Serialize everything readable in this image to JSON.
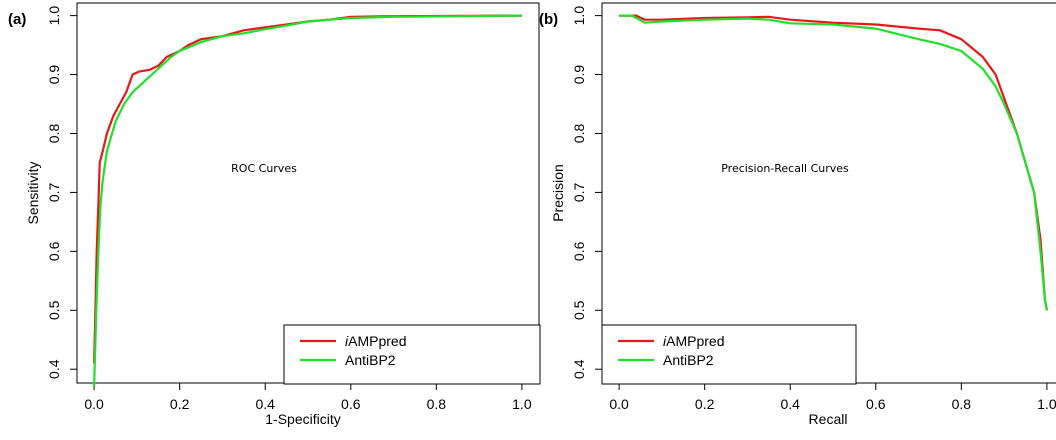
{
  "chart_data": [
    {
      "panel_label": "(a)",
      "type": "line",
      "annotation": "ROC Curves",
      "xlabel": "1-Specificity",
      "ylabel": "Sensitivity",
      "xlim": [
        0,
        1
      ],
      "ylim": [
        0.38,
        1.0
      ],
      "x_ticks": [
        "0.0",
        "0.2",
        "0.4",
        "0.6",
        "0.8",
        "1.0"
      ],
      "y_ticks": [
        "0.4",
        "0.5",
        "0.6",
        "0.7",
        "0.8",
        "0.9",
        "1.0"
      ],
      "legend_position": "bottom-right",
      "series": [
        {
          "name_prefix": "i",
          "name_rest": "AMPpred",
          "color": "#e8171c",
          "points": [
            [
              0,
              0.41
            ],
            [
              0.003,
              0.5
            ],
            [
              0.006,
              0.6
            ],
            [
              0.01,
              0.68
            ],
            [
              0.013,
              0.75
            ],
            [
              0.02,
              0.77
            ],
            [
              0.03,
              0.8
            ],
            [
              0.045,
              0.83
            ],
            [
              0.06,
              0.85
            ],
            [
              0.075,
              0.87
            ],
            [
              0.09,
              0.9
            ],
            [
              0.105,
              0.905
            ],
            [
              0.13,
              0.908
            ],
            [
              0.15,
              0.915
            ],
            [
              0.17,
              0.93
            ],
            [
              0.2,
              0.94
            ],
            [
              0.22,
              0.95
            ],
            [
              0.25,
              0.96
            ],
            [
              0.3,
              0.965
            ],
            [
              0.35,
              0.975
            ],
            [
              0.4,
              0.98
            ],
            [
              0.45,
              0.985
            ],
            [
              0.5,
              0.99
            ],
            [
              0.55,
              0.993
            ],
            [
              0.6,
              0.998
            ],
            [
              0.7,
              0.999
            ],
            [
              1.0,
              1.0
            ]
          ]
        },
        {
          "name": "AntiBP2",
          "color": "#20e02a",
          "points": [
            [
              0,
              0.37
            ],
            [
              0.005,
              0.5
            ],
            [
              0.01,
              0.6
            ],
            [
              0.015,
              0.68
            ],
            [
              0.02,
              0.72
            ],
            [
              0.03,
              0.77
            ],
            [
              0.05,
              0.82
            ],
            [
              0.07,
              0.85
            ],
            [
              0.09,
              0.87
            ],
            [
              0.12,
              0.89
            ],
            [
              0.15,
              0.91
            ],
            [
              0.18,
              0.93
            ],
            [
              0.2,
              0.94
            ],
            [
              0.25,
              0.955
            ],
            [
              0.3,
              0.965
            ],
            [
              0.35,
              0.97
            ],
            [
              0.4,
              0.977
            ],
            [
              0.45,
              0.983
            ],
            [
              0.5,
              0.99
            ],
            [
              0.55,
              0.993
            ],
            [
              0.6,
              0.996
            ],
            [
              0.7,
              0.998
            ],
            [
              1.0,
              1.0
            ]
          ]
        }
      ]
    },
    {
      "panel_label": "(b)",
      "type": "line",
      "annotation": "Precision-Recall Curves",
      "xlabel": "Recall",
      "ylabel": "Precision",
      "xlim": [
        0,
        1
      ],
      "ylim": [
        0.38,
        1.0
      ],
      "x_ticks": [
        "0.0",
        "0.2",
        "0.4",
        "0.6",
        "0.8",
        "1.0"
      ],
      "y_ticks": [
        "0.4",
        "0.5",
        "0.6",
        "0.7",
        "0.8",
        "0.9",
        "1.0"
      ],
      "legend_position": "bottom-left",
      "series": [
        {
          "name_prefix": "i",
          "name_rest": "AMPpred",
          "color": "#e8171c",
          "points": [
            [
              0,
              1.0
            ],
            [
              0.04,
              1.0
            ],
            [
              0.06,
              0.993
            ],
            [
              0.1,
              0.993
            ],
            [
              0.2,
              0.996
            ],
            [
              0.3,
              0.997
            ],
            [
              0.35,
              0.998
            ],
            [
              0.4,
              0.993
            ],
            [
              0.5,
              0.988
            ],
            [
              0.6,
              0.985
            ],
            [
              0.7,
              0.978
            ],
            [
              0.75,
              0.975
            ],
            [
              0.8,
              0.96
            ],
            [
              0.85,
              0.93
            ],
            [
              0.88,
              0.9
            ],
            [
              0.9,
              0.86
            ],
            [
              0.93,
              0.8
            ],
            [
              0.95,
              0.75
            ],
            [
              0.97,
              0.7
            ],
            [
              0.985,
              0.62
            ],
            [
              0.995,
              0.52
            ],
            [
              1.0,
              0.5
            ]
          ]
        },
        {
          "name": "AntiBP2",
          "color": "#20e02a",
          "points": [
            [
              0,
              1.0
            ],
            [
              0.03,
              1.0
            ],
            [
              0.06,
              0.988
            ],
            [
              0.1,
              0.99
            ],
            [
              0.2,
              0.993
            ],
            [
              0.3,
              0.995
            ],
            [
              0.35,
              0.993
            ],
            [
              0.4,
              0.987
            ],
            [
              0.5,
              0.985
            ],
            [
              0.6,
              0.978
            ],
            [
              0.7,
              0.96
            ],
            [
              0.75,
              0.952
            ],
            [
              0.8,
              0.94
            ],
            [
              0.85,
              0.91
            ],
            [
              0.88,
              0.88
            ],
            [
              0.9,
              0.85
            ],
            [
              0.93,
              0.8
            ],
            [
              0.95,
              0.75
            ],
            [
              0.97,
              0.7
            ],
            [
              0.985,
              0.6
            ],
            [
              0.995,
              0.52
            ],
            [
              1.0,
              0.5
            ]
          ]
        }
      ]
    }
  ]
}
